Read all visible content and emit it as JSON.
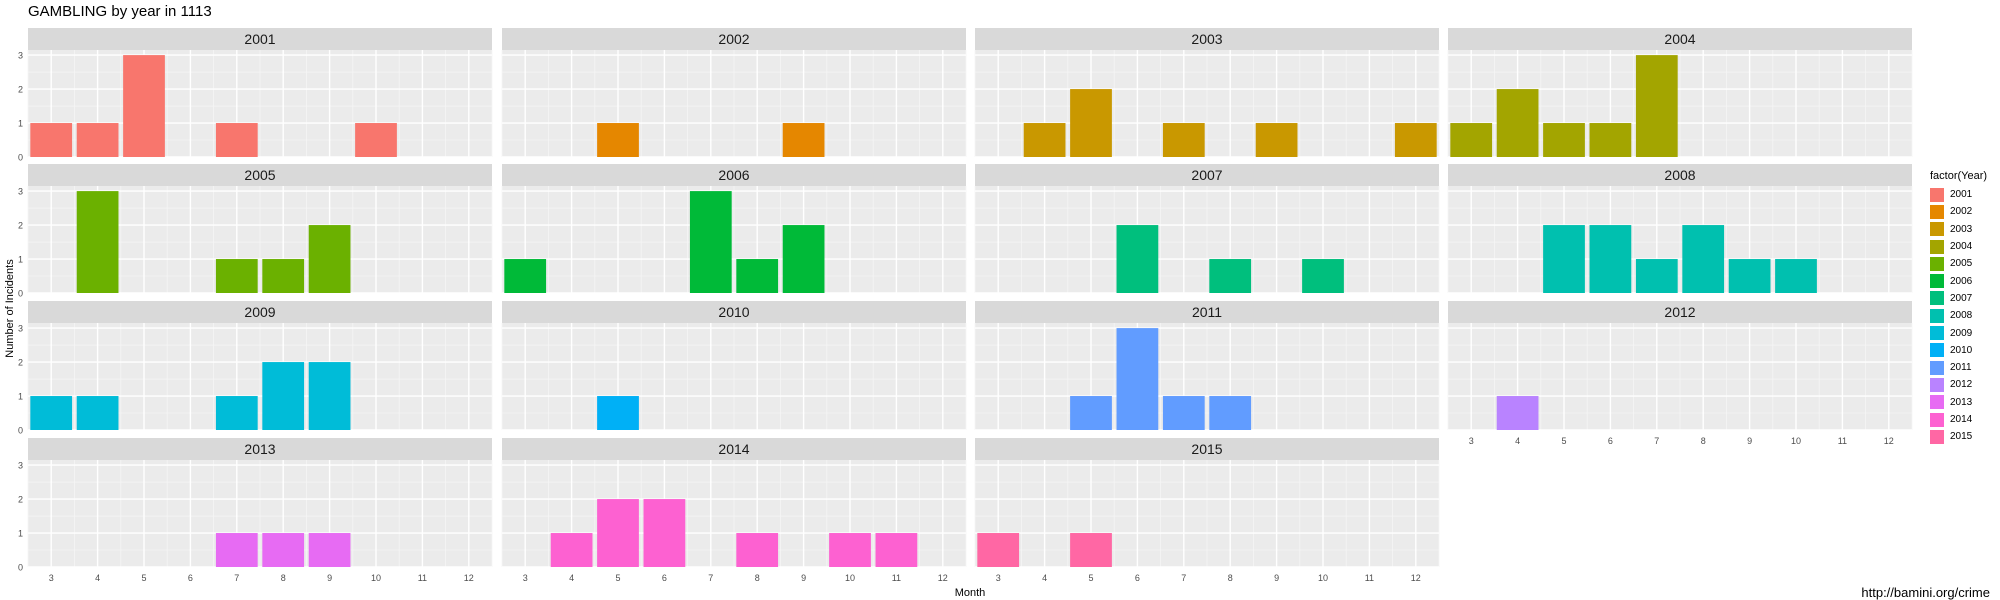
{
  "chart_data": {
    "type": "bar",
    "title": "GAMBLING by year in 1113",
    "xlabel": "Month",
    "ylabel": "Number of Incidents",
    "x_ticks": [
      3,
      4,
      5,
      6,
      7,
      8,
      9,
      10,
      11,
      12
    ],
    "y_ticks": [
      0,
      1,
      2,
      3
    ],
    "xlim": [
      2.5,
      12.5
    ],
    "ylim": [
      0,
      3.15
    ],
    "grid": true,
    "legend_title": "factor(Year)",
    "legend_position": "right",
    "panels": [
      {
        "year": "2001",
        "color": "#F8766D",
        "bars": [
          {
            "x": 3,
            "y": 1
          },
          {
            "x": 4,
            "y": 1
          },
          {
            "x": 5,
            "y": 3
          },
          {
            "x": 7,
            "y": 1
          },
          {
            "x": 10,
            "y": 1
          }
        ]
      },
      {
        "year": "2002",
        "color": "#E58700",
        "bars": [
          {
            "x": 5,
            "y": 1
          },
          {
            "x": 9,
            "y": 1
          }
        ]
      },
      {
        "year": "2003",
        "color": "#C99800",
        "bars": [
          {
            "x": 4,
            "y": 1
          },
          {
            "x": 5,
            "y": 2
          },
          {
            "x": 7,
            "y": 1
          },
          {
            "x": 9,
            "y": 1
          },
          {
            "x": 12,
            "y": 1
          }
        ]
      },
      {
        "year": "2004",
        "color": "#A3A500",
        "bars": [
          {
            "x": 3,
            "y": 1
          },
          {
            "x": 4,
            "y": 2
          },
          {
            "x": 5,
            "y": 1
          },
          {
            "x": 6,
            "y": 1
          },
          {
            "x": 7,
            "y": 3
          }
        ]
      },
      {
        "year": "2005",
        "color": "#6BB100",
        "bars": [
          {
            "x": 4,
            "y": 3
          },
          {
            "x": 7,
            "y": 1
          },
          {
            "x": 8,
            "y": 1
          },
          {
            "x": 9,
            "y": 2
          }
        ]
      },
      {
        "year": "2006",
        "color": "#00BA38",
        "bars": [
          {
            "x": 3,
            "y": 1
          },
          {
            "x": 7,
            "y": 3
          },
          {
            "x": 8,
            "y": 1
          },
          {
            "x": 9,
            "y": 2
          }
        ]
      },
      {
        "year": "2007",
        "color": "#00BF7D",
        "bars": [
          {
            "x": 6,
            "y": 2
          },
          {
            "x": 8,
            "y": 1
          },
          {
            "x": 10,
            "y": 1
          }
        ]
      },
      {
        "year": "2008",
        "color": "#00C0AF",
        "bars": [
          {
            "x": 5,
            "y": 2
          },
          {
            "x": 6,
            "y": 2
          },
          {
            "x": 7,
            "y": 1
          },
          {
            "x": 8,
            "y": 2
          },
          {
            "x": 9,
            "y": 1
          },
          {
            "x": 10,
            "y": 1
          }
        ]
      },
      {
        "year": "2009",
        "color": "#00BCD8",
        "bars": [
          {
            "x": 3,
            "y": 1
          },
          {
            "x": 4,
            "y": 1
          },
          {
            "x": 7,
            "y": 1
          },
          {
            "x": 8,
            "y": 2
          },
          {
            "x": 9,
            "y": 2
          }
        ]
      },
      {
        "year": "2010",
        "color": "#00B0F6",
        "bars": [
          {
            "x": 5,
            "y": 1
          }
        ]
      },
      {
        "year": "2011",
        "color": "#619CFF",
        "bars": [
          {
            "x": 5,
            "y": 1
          },
          {
            "x": 6,
            "y": 3
          },
          {
            "x": 7,
            "y": 1
          },
          {
            "x": 8,
            "y": 1
          }
        ]
      },
      {
        "year": "2012",
        "color": "#B983FF",
        "bars": [
          {
            "x": 4,
            "y": 1
          }
        ]
      },
      {
        "year": "2013",
        "color": "#E76BF3",
        "bars": [
          {
            "x": 7,
            "y": 1
          },
          {
            "x": 8,
            "y": 1
          },
          {
            "x": 9,
            "y": 1
          }
        ]
      },
      {
        "year": "2014",
        "color": "#FD61D1",
        "bars": [
          {
            "x": 4,
            "y": 1
          },
          {
            "x": 5,
            "y": 2
          },
          {
            "x": 6,
            "y": 2
          },
          {
            "x": 8,
            "y": 1
          },
          {
            "x": 10,
            "y": 1
          },
          {
            "x": 11,
            "y": 1
          }
        ]
      },
      {
        "year": "2015",
        "color": "#FF67A4",
        "bars": [
          {
            "x": 3,
            "y": 1
          },
          {
            "x": 5,
            "y": 1
          }
        ]
      }
    ]
  },
  "source_credit": "http://bamini.org/crime"
}
